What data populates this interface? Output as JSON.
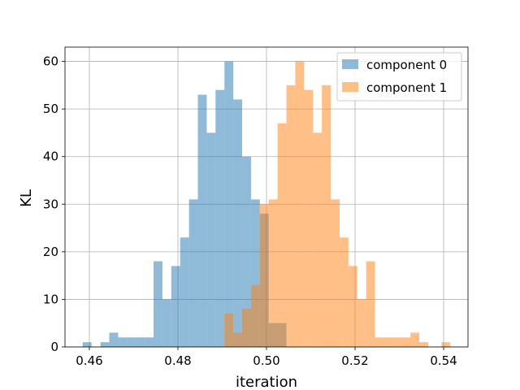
{
  "chart_data": {
    "type": "bar",
    "title": "",
    "xlabel": "iteration",
    "ylabel": "KL",
    "xlim": [
      0.4545,
      0.5455
    ],
    "ylim": [
      0,
      63
    ],
    "x_ticks": [
      0.46,
      0.48,
      0.5,
      0.52,
      0.54
    ],
    "x_tick_labels": [
      "0.46",
      "0.48",
      "0.50",
      "0.52",
      "0.54"
    ],
    "y_ticks": [
      0,
      10,
      20,
      30,
      40,
      50,
      60
    ],
    "y_tick_labels": [
      "0",
      "10",
      "20",
      "30",
      "40",
      "50",
      "60"
    ],
    "grid": true,
    "legend_position": "top-right",
    "series": [
      {
        "name": "component 0",
        "color": "#1f77b4",
        "opacity": 0.5,
        "bins": [
          {
            "x0": 0.4585,
            "x1": 0.4605,
            "value": 1
          },
          {
            "x0": 0.4625,
            "x1": 0.4645,
            "value": 1
          },
          {
            "x0": 0.4645,
            "x1": 0.4665,
            "value": 3
          },
          {
            "x0": 0.4665,
            "x1": 0.4685,
            "value": 2
          },
          {
            "x0": 0.4685,
            "x1": 0.4705,
            "value": 2
          },
          {
            "x0": 0.4705,
            "x1": 0.4725,
            "value": 2
          },
          {
            "x0": 0.4725,
            "x1": 0.4745,
            "value": 2
          },
          {
            "x0": 0.4745,
            "x1": 0.4765,
            "value": 18
          },
          {
            "x0": 0.4765,
            "x1": 0.4785,
            "value": 10
          },
          {
            "x0": 0.4785,
            "x1": 0.4805,
            "value": 17
          },
          {
            "x0": 0.4805,
            "x1": 0.4825,
            "value": 23
          },
          {
            "x0": 0.4825,
            "x1": 0.4845,
            "value": 31
          },
          {
            "x0": 0.4845,
            "x1": 0.4865,
            "value": 53
          },
          {
            "x0": 0.4865,
            "x1": 0.4885,
            "value": 45
          },
          {
            "x0": 0.4885,
            "x1": 0.4905,
            "value": 54
          },
          {
            "x0": 0.4905,
            "x1": 0.4925,
            "value": 60
          },
          {
            "x0": 0.4925,
            "x1": 0.4945,
            "value": 52
          },
          {
            "x0": 0.4945,
            "x1": 0.4965,
            "value": 40
          },
          {
            "x0": 0.4965,
            "x1": 0.4985,
            "value": 31
          },
          {
            "x0": 0.4985,
            "x1": 0.5005,
            "value": 28
          },
          {
            "x0": 0.5005,
            "x1": 0.5025,
            "value": 5
          },
          {
            "x0": 0.5025,
            "x1": 0.5045,
            "value": 5
          }
        ]
      },
      {
        "name": "component 1",
        "color": "#ff7f0e",
        "opacity": 0.5,
        "bins": [
          {
            "x0": 0.4905,
            "x1": 0.4925,
            "value": 7
          },
          {
            "x0": 0.4925,
            "x1": 0.4945,
            "value": 3
          },
          {
            "x0": 0.4945,
            "x1": 0.4965,
            "value": 8
          },
          {
            "x0": 0.4965,
            "x1": 0.4985,
            "value": 13
          },
          {
            "x0": 0.4985,
            "x1": 0.5005,
            "value": 30
          },
          {
            "x0": 0.5005,
            "x1": 0.5025,
            "value": 31
          },
          {
            "x0": 0.5025,
            "x1": 0.5045,
            "value": 47
          },
          {
            "x0": 0.5045,
            "x1": 0.5065,
            "value": 55
          },
          {
            "x0": 0.5065,
            "x1": 0.5085,
            "value": 60
          },
          {
            "x0": 0.5085,
            "x1": 0.5105,
            "value": 54
          },
          {
            "x0": 0.5105,
            "x1": 0.5125,
            "value": 45
          },
          {
            "x0": 0.5125,
            "x1": 0.5145,
            "value": 55
          },
          {
            "x0": 0.5145,
            "x1": 0.5165,
            "value": 31
          },
          {
            "x0": 0.5165,
            "x1": 0.5185,
            "value": 23
          },
          {
            "x0": 0.5185,
            "x1": 0.5205,
            "value": 17
          },
          {
            "x0": 0.5205,
            "x1": 0.5225,
            "value": 10
          },
          {
            "x0": 0.5225,
            "x1": 0.5245,
            "value": 18
          },
          {
            "x0": 0.5245,
            "x1": 0.5265,
            "value": 2
          },
          {
            "x0": 0.5265,
            "x1": 0.5285,
            "value": 2
          },
          {
            "x0": 0.5285,
            "x1": 0.5305,
            "value": 2
          },
          {
            "x0": 0.5305,
            "x1": 0.5325,
            "value": 2
          },
          {
            "x0": 0.5325,
            "x1": 0.5345,
            "value": 3
          },
          {
            "x0": 0.5345,
            "x1": 0.5365,
            "value": 1
          },
          {
            "x0": 0.5395,
            "x1": 0.5415,
            "value": 1
          }
        ]
      }
    ]
  }
}
